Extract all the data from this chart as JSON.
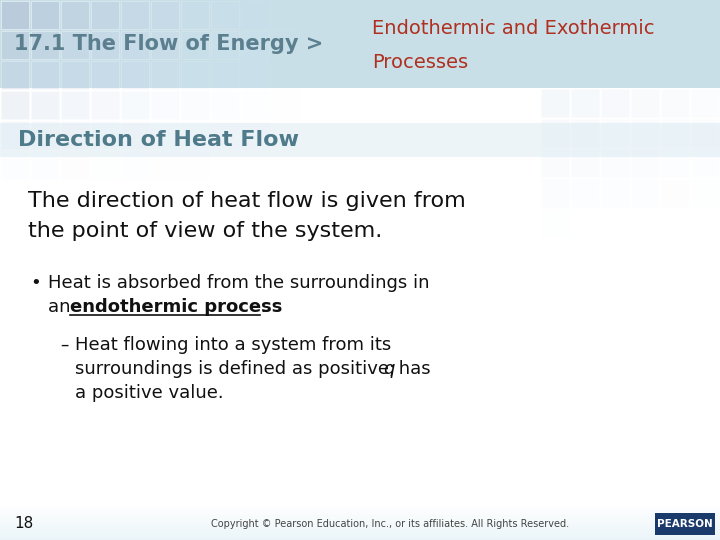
{
  "header_left_text": "17.1 The Flow of Energy >",
  "header_left_color": "#5b7f8f",
  "header_right_line1": "Endothermic and Exothermic",
  "header_right_line2": "Processes",
  "header_right_color": "#b03020",
  "section_title": "Direction of Heat Flow",
  "section_title_color": "#4e7a8a",
  "body_text1_line1": "The direction of heat flow is given from",
  "body_text1_line2": "the point of view of the system.",
  "bullet_text_line1": "Heat is absorbed from the surroundings in",
  "bullet_text_line2_pre": "an ",
  "bullet_text_line2_bold": "endothermic process",
  "bullet_text_line2_end": ".",
  "sub_bullet_line1": "Heat flowing into a system from its",
  "sub_bullet_line2a": "surroundings is defined as positive; ",
  "sub_bullet_line2b": "q",
  "sub_bullet_line2c": " has",
  "sub_bullet_line3": "a positive value.",
  "footer_number": "18",
  "footer_copyright": "Copyright © Pearson Education, Inc., or its affiliates. All Rights Reserved.",
  "bg_color": "#ffffff",
  "body_text_color": "#111111",
  "tile_colors": [
    "#c5dde8",
    "#cde3ec",
    "#d5e9f0",
    "#ddeef4",
    "#e5f3f8"
  ],
  "header_bg": "#c8dfe8",
  "tile_size": 30
}
